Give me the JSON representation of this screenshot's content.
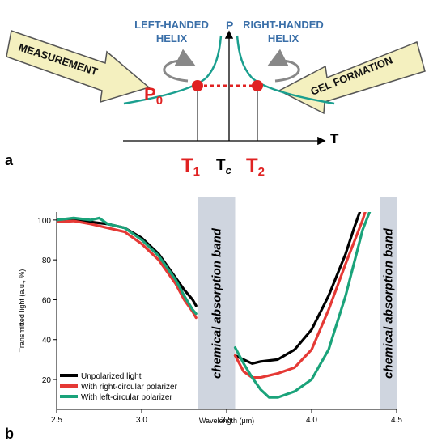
{
  "panel_a": {
    "panel_label": "a",
    "left_label": [
      "LEFT-HANDED",
      "HELIX"
    ],
    "right_label": [
      "RIGHT-HANDED",
      "HELIX"
    ],
    "p_axis": "P",
    "t_axis": "T",
    "p0_main": "P",
    "p0_sub": "0",
    "t1_main": "T",
    "t1_sub": "1",
    "tc_main": "T",
    "tc_sub": "c",
    "t2_main": "T",
    "t2_sub": "2",
    "left_arrow": "MEASUREMENT",
    "right_arrow": "GEL FORMATION",
    "colors": {
      "curve": "#1a9f8f",
      "red": "#e02222",
      "blue": "#3a6fa8",
      "arrow_fill": "#f4f0bf"
    }
  },
  "chart_data": {
    "type": "line",
    "panel_label": "b",
    "xlabel": "Wavelength (μm)",
    "ylabel": "Transmitted light (a.u., %)",
    "xlim": [
      2.5,
      4.5
    ],
    "ylim": [
      5,
      104
    ],
    "xticks": [
      "2.5",
      "3.0",
      "3.5",
      "4.0",
      "4.5"
    ],
    "xtick_values": [
      2.5,
      3.0,
      3.5,
      4.0,
      4.5
    ],
    "yticks": [
      "100",
      "80",
      "60",
      "40",
      "20"
    ],
    "ytick_values": [
      100,
      80,
      60,
      40,
      20
    ],
    "bands": [
      {
        "label": "chemical absorption band",
        "x_start": 3.33,
        "x_end": 3.55
      },
      {
        "label": "chemical absorption band",
        "x_start": 4.4,
        "x_end": 4.5
      }
    ],
    "series": [
      {
        "name": "Unpolarized light",
        "color": "#000000",
        "segments": [
          [
            [
              2.5,
              100
            ],
            [
              2.6,
              100.5
            ],
            [
              2.7,
              99
            ],
            [
              2.8,
              98
            ],
            [
              2.9,
              96
            ],
            [
              3.0,
              91
            ],
            [
              3.1,
              83
            ],
            [
              3.2,
              71
            ],
            [
              3.25,
              65
            ],
            [
              3.3,
              60
            ],
            [
              3.32,
              57
            ]
          ],
          [
            [
              3.55,
              32
            ],
            [
              3.6,
              30
            ],
            [
              3.65,
              28
            ],
            [
              3.7,
              29
            ],
            [
              3.8,
              30
            ],
            [
              3.9,
              35
            ],
            [
              4.0,
              45
            ],
            [
              4.1,
              62
            ],
            [
              4.2,
              83
            ],
            [
              4.25,
              96
            ],
            [
              4.3,
              108
            ]
          ]
        ]
      },
      {
        "name": "With right-circular polarizer",
        "color": "#e53935",
        "segments": [
          [
            [
              2.5,
              99
            ],
            [
              2.6,
              99.5
            ],
            [
              2.7,
              98
            ],
            [
              2.8,
              96
            ],
            [
              2.9,
              94
            ],
            [
              3.0,
              88
            ],
            [
              3.1,
              80
            ],
            [
              3.2,
              68
            ],
            [
              3.25,
              60
            ],
            [
              3.3,
              54
            ],
            [
              3.32,
              51
            ]
          ],
          [
            [
              3.55,
              32
            ],
            [
              3.6,
              24
            ],
            [
              3.65,
              21
            ],
            [
              3.7,
              21
            ],
            [
              3.8,
              23
            ],
            [
              3.9,
              26
            ],
            [
              4.0,
              35
            ],
            [
              4.1,
              55
            ],
            [
              4.2,
              78
            ],
            [
              4.3,
              100
            ],
            [
              4.33,
              108
            ]
          ]
        ]
      },
      {
        "name": "With left-circular polarizer",
        "color": "#1aa37a",
        "segments": [
          [
            [
              2.5,
              100
            ],
            [
              2.6,
              101
            ],
            [
              2.7,
              100
            ],
            [
              2.75,
              101
            ],
            [
              2.8,
              98
            ],
            [
              2.9,
              96
            ],
            [
              3.0,
              90
            ],
            [
              3.1,
              82
            ],
            [
              3.2,
              70
            ],
            [
              3.25,
              62
            ],
            [
              3.3,
              55
            ],
            [
              3.32,
              53
            ]
          ],
          [
            [
              3.55,
              36
            ],
            [
              3.6,
              28
            ],
            [
              3.65,
              21
            ],
            [
              3.7,
              15
            ],
            [
              3.75,
              11
            ],
            [
              3.8,
              11
            ],
            [
              3.9,
              14
            ],
            [
              4.0,
              20
            ],
            [
              4.1,
              35
            ],
            [
              4.2,
              62
            ],
            [
              4.3,
              95
            ],
            [
              4.35,
              106
            ]
          ]
        ]
      }
    ]
  }
}
